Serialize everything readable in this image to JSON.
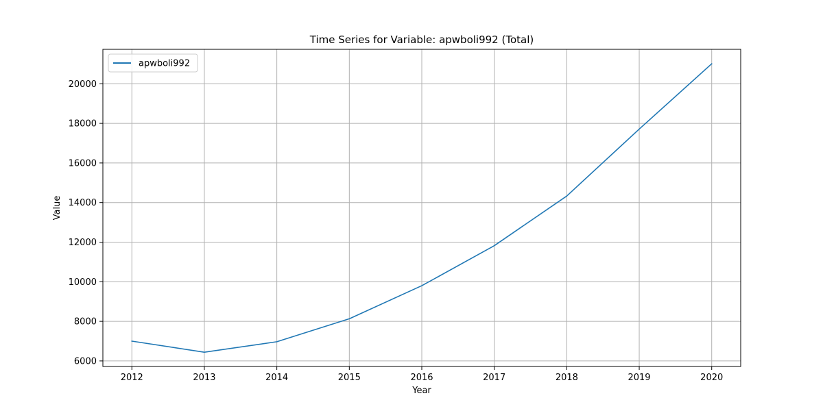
{
  "chart_data": {
    "type": "line",
    "title": "Time Series for Variable: apwboli992 (Total)",
    "xlabel": "Year",
    "ylabel": "Value",
    "x": [
      2012,
      2013,
      2014,
      2015,
      2016,
      2017,
      2018,
      2019,
      2020
    ],
    "xticks": [
      "2012",
      "2013",
      "2014",
      "2015",
      "2016",
      "2017",
      "2018",
      "2019",
      "2020"
    ],
    "xlim": [
      2011.6,
      2020.4
    ],
    "yticks": [
      6000,
      8000,
      10000,
      12000,
      14000,
      16000,
      18000,
      20000
    ],
    "ylim": [
      5720,
      21740
    ],
    "grid": true,
    "legend_position": "top-left",
    "series": [
      {
        "name": "apwboli992",
        "color": "#1f77b4",
        "values": [
          7000,
          6440,
          6970,
          8130,
          9800,
          11820,
          14330,
          17710,
          21010
        ]
      }
    ]
  }
}
